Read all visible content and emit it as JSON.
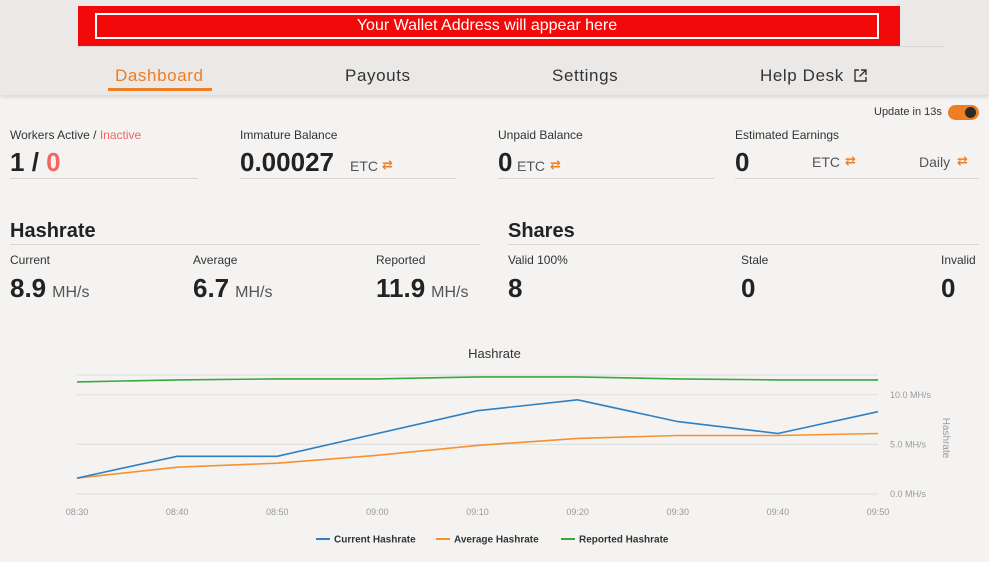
{
  "wallet_banner": "Your Wallet Address will appear here",
  "nav": {
    "dashboard": "Dashboard",
    "payouts": "Payouts",
    "settings": "Settings",
    "help_desk": "Help Desk"
  },
  "update": {
    "label": "Update in 13s",
    "enabled": true
  },
  "workers": {
    "label_active": "Workers Active / ",
    "label_inactive": "Inactive",
    "active": "1",
    "sep": " / ",
    "inactive": "0"
  },
  "immature": {
    "label": "Immature Balance",
    "value": "0.00027",
    "unit": "ETC"
  },
  "unpaid": {
    "label": "Unpaid Balance",
    "value": "0",
    "unit": "ETC"
  },
  "estimated": {
    "label": "Estimated Earnings",
    "value": "0",
    "unit": "ETC",
    "period": "Daily"
  },
  "hashrate": {
    "title": "Hashrate",
    "current_label": "Current",
    "current_value": "8.9",
    "current_unit": "MH/s",
    "average_label": "Average",
    "average_value": "6.7",
    "average_unit": "MH/s",
    "reported_label": "Reported",
    "reported_value": "11.9",
    "reported_unit": "MH/s"
  },
  "shares": {
    "title": "Shares",
    "valid_label": "Valid 100%",
    "valid_value": "8",
    "stale_label": "Stale",
    "stale_value": "0",
    "invalid_label": "Invalid",
    "invalid_value": "0"
  },
  "colors": {
    "accent": "#ef7d22",
    "banner": "#f20a0a",
    "current": "#2f7fc1",
    "average": "#f5922e",
    "reported": "#3aa83a"
  },
  "chart_data": {
    "type": "line",
    "title": "Hashrate",
    "ylabel": "Hashrate",
    "x": [
      "08:30",
      "08:40",
      "08:50",
      "09:00",
      "09:10",
      "09:20",
      "09:30",
      "09:40",
      "09:50"
    ],
    "ylim": [
      0,
      12.5
    ],
    "yticks": [
      "0.0 MH/s",
      "5.0 MH/s",
      "10.0 MH/s"
    ],
    "ytick_values": [
      0,
      5,
      10
    ],
    "series": [
      {
        "name": "Current Hashrate",
        "color": "#2f7fc1",
        "values": [
          1.6,
          3.8,
          3.8,
          6.1,
          8.4,
          9.5,
          7.3,
          6.1,
          8.3
        ]
      },
      {
        "name": "Average Hashrate",
        "color": "#f5922e",
        "values": [
          1.6,
          2.7,
          3.1,
          3.9,
          4.9,
          5.6,
          5.9,
          5.9,
          6.1
        ]
      },
      {
        "name": "Reported Hashrate",
        "color": "#3aa83a",
        "values": [
          11.3,
          11.5,
          11.6,
          11.6,
          11.8,
          11.8,
          11.6,
          11.5,
          11.5
        ]
      }
    ],
    "legend_position": "bottom",
    "grid": true
  }
}
